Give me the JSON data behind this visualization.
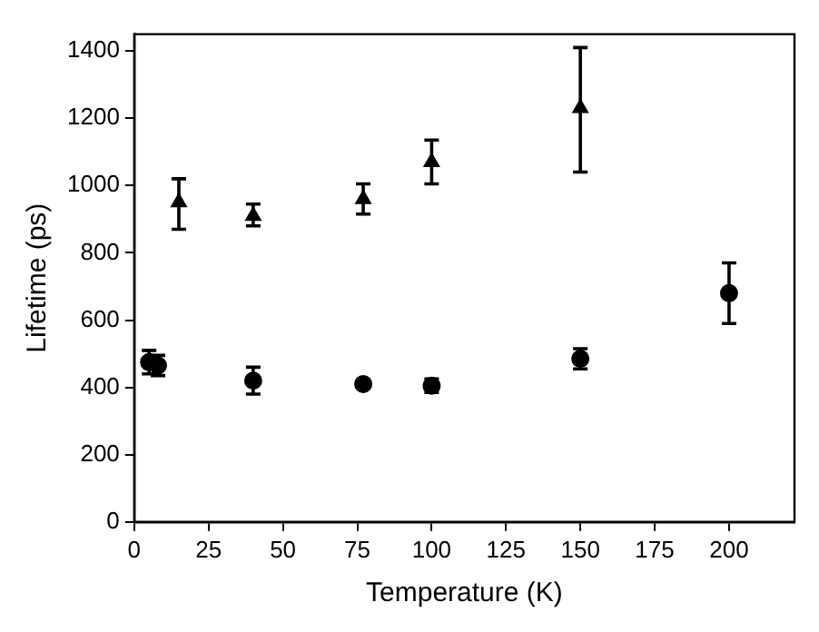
{
  "chart_data": {
    "type": "scatter",
    "xlabel": "Temperature (K)",
    "ylabel": "Lifetime (ps)",
    "xlim": [
      0,
      222
    ],
    "xticks": [
      0,
      25,
      50,
      75,
      100,
      125,
      150,
      175,
      200
    ],
    "ylim": [
      0,
      1450
    ],
    "yticks": [
      0,
      200,
      400,
      600,
      800,
      1000,
      1200,
      1400
    ],
    "grid": false,
    "legend": false,
    "series": [
      {
        "color": "#000000",
        "marker": "triangle",
        "x": [
          15,
          40,
          77,
          100,
          150
        ],
        "values": [
          950,
          910,
          960,
          1070,
          1230
        ],
        "errors": [
          [
            870,
            1020
          ],
          [
            880,
            945
          ],
          [
            915,
            1005
          ],
          [
            1005,
            1135
          ],
          [
            1040,
            1410
          ]
        ]
      },
      {
        "color": "#000000",
        "x": [
          5,
          8,
          40,
          77,
          100,
          150,
          200
        ],
        "values": [
          475,
          465,
          420,
          410,
          405,
          485,
          680
        ],
        "errors": [
          [
            440,
            510
          ],
          [
            435,
            495
          ],
          [
            380,
            460
          ],
          null,
          [
            385,
            425
          ],
          [
            455,
            515
          ],
          [
            590,
            770
          ]
        ]
      }
    ]
  }
}
